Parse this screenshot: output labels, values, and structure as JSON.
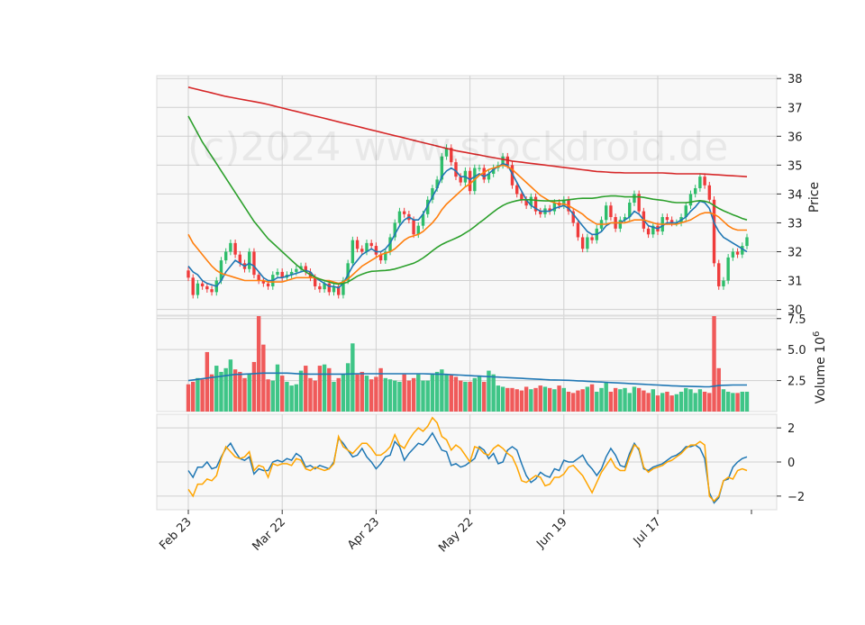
{
  "watermark": "(c)2024 www.stockdroid.de",
  "chart_data": [
    {
      "panel": "price",
      "type": "candlestick",
      "ylabel": "Price",
      "ylim": [
        29.8,
        38.1
      ],
      "y_ticks": [
        30,
        31,
        32,
        33,
        34,
        35,
        36,
        37,
        38
      ],
      "x_tick_labels": [
        "Feb 23",
        "Mar 22",
        "Apr 23",
        "May 22",
        "Jun 19",
        "Jul 17"
      ],
      "x_tick_index": [
        0,
        20,
        40,
        60,
        80,
        100
      ],
      "candles_close": [
        31.1,
        30.5,
        30.9,
        30.8,
        30.7,
        30.6,
        31.0,
        31.7,
        32.0,
        32.3,
        31.9,
        31.6,
        31.4,
        32.0,
        31.2,
        31.0,
        30.9,
        30.8,
        31.2,
        31.3,
        31.1,
        31.2,
        31.3,
        31.4,
        31.5,
        31.3,
        31.1,
        30.8,
        30.7,
        30.9,
        30.6,
        30.8,
        30.5,
        31.0,
        31.6,
        32.4,
        32.1,
        32.0,
        32.3,
        32.2,
        31.9,
        31.7,
        32.0,
        32.5,
        33.0,
        33.4,
        33.3,
        33.1,
        32.6,
        32.9,
        33.3,
        33.8,
        34.2,
        34.5,
        35.3,
        35.6,
        35.1,
        34.6,
        34.4,
        34.8,
        34.1,
        34.9,
        34.9,
        34.5,
        34.7,
        34.9,
        35.0,
        35.3,
        35.0,
        34.3,
        34.0,
        33.8,
        33.6,
        33.9,
        33.4,
        33.3,
        33.5,
        33.4,
        33.7,
        33.6,
        33.8,
        33.4,
        33.0,
        32.5,
        32.1,
        32.5,
        32.4,
        32.8,
        33.1,
        33.6,
        33.2,
        32.8,
        33.1,
        33.2,
        33.7,
        34.0,
        33.4,
        32.8,
        32.6,
        32.9,
        32.7,
        33.2,
        33.1,
        33.0,
        33.0,
        33.2,
        33.6,
        34.0,
        34.2,
        34.6,
        34.3,
        33.8,
        31.6,
        30.8,
        31.0,
        31.8,
        32.0,
        31.9,
        32.2,
        32.5
      ],
      "series": [
        {
          "name": "",
          "color": "#1f77b4",
          "values": [
            31.5,
            31.3,
            31.2,
            31.0,
            30.9,
            30.85,
            30.8,
            31.0,
            31.3,
            31.5,
            31.7,
            31.6,
            31.5,
            31.6,
            31.5,
            31.3,
            31.1,
            31.0,
            31.0,
            31.1,
            31.1,
            31.15,
            31.2,
            31.25,
            31.3,
            31.35,
            31.3,
            31.1,
            31.0,
            30.9,
            30.8,
            30.8,
            30.75,
            30.9,
            31.2,
            31.5,
            31.7,
            31.9,
            32.0,
            32.1,
            32.0,
            32.0,
            32.1,
            32.3,
            32.6,
            32.9,
            33.1,
            33.2,
            33.1,
            33.1,
            33.3,
            33.6,
            33.9,
            34.2,
            34.6,
            34.8,
            34.9,
            34.8,
            34.6,
            34.6,
            34.5,
            34.6,
            34.7,
            34.6,
            34.7,
            34.85,
            34.95,
            35.05,
            35.0,
            34.7,
            34.4,
            34.1,
            33.8,
            33.6,
            33.5,
            33.4,
            33.4,
            33.4,
            33.5,
            33.55,
            33.6,
            33.5,
            33.3,
            33.1,
            32.9,
            32.7,
            32.6,
            32.6,
            32.7,
            32.9,
            33.0,
            33.0,
            33.0,
            33.1,
            33.2,
            33.4,
            33.3,
            33.1,
            32.9,
            32.85,
            32.8,
            32.9,
            33.0,
            33.0,
            33.0,
            33.1,
            33.2,
            33.4,
            33.55,
            33.75,
            33.7,
            33.5,
            33.0,
            32.7,
            32.5,
            32.4,
            32.3,
            32.2,
            32.1,
            32.0
          ]
        },
        {
          "name": "",
          "color": "#ff7f0e",
          "values": [
            32.6,
            32.3,
            32.1,
            31.9,
            31.7,
            31.5,
            31.35,
            31.25,
            31.2,
            31.15,
            31.1,
            31.05,
            31.0,
            31.0,
            31.0,
            31.0,
            31.0,
            30.95,
            30.95,
            30.95,
            30.95,
            31.0,
            31.05,
            31.1,
            31.1,
            31.1,
            31.1,
            31.1,
            31.05,
            31.0,
            31.0,
            30.95,
            30.9,
            30.95,
            31.05,
            31.2,
            31.35,
            31.5,
            31.6,
            31.7,
            31.8,
            31.9,
            31.95,
            32.0,
            32.1,
            32.25,
            32.4,
            32.5,
            32.55,
            32.6,
            32.7,
            32.85,
            33.0,
            33.2,
            33.45,
            33.65,
            33.8,
            33.95,
            34.1,
            34.25,
            34.35,
            34.5,
            34.65,
            34.75,
            34.85,
            34.9,
            34.95,
            35.0,
            34.95,
            34.85,
            34.7,
            34.55,
            34.4,
            34.25,
            34.1,
            33.95,
            33.85,
            33.75,
            33.7,
            33.65,
            33.65,
            33.6,
            33.5,
            33.4,
            33.3,
            33.15,
            33.05,
            32.95,
            32.95,
            32.95,
            33.0,
            33.0,
            33.0,
            33.0,
            33.05,
            33.1,
            33.1,
            33.1,
            33.05,
            33.0,
            32.95,
            32.95,
            32.95,
            32.95,
            32.95,
            33.0,
            33.05,
            33.1,
            33.2,
            33.3,
            33.35,
            33.35,
            33.3,
            33.2,
            33.05,
            32.9,
            32.8,
            32.75,
            32.75,
            32.75
          ]
        },
        {
          "name": "",
          "color": "#2ca02c",
          "values": [
            36.7,
            36.4,
            36.1,
            35.8,
            35.55,
            35.3,
            35.05,
            34.8,
            34.55,
            34.3,
            34.05,
            33.8,
            33.55,
            33.3,
            33.05,
            32.85,
            32.65,
            32.45,
            32.3,
            32.15,
            32.0,
            31.85,
            31.7,
            31.55,
            31.42,
            31.3,
            31.2,
            31.12,
            31.05,
            31.0,
            30.95,
            30.9,
            30.88,
            30.9,
            30.95,
            31.05,
            31.15,
            31.22,
            31.28,
            31.32,
            31.33,
            31.34,
            31.35,
            31.37,
            31.4,
            31.45,
            31.5,
            31.55,
            31.6,
            31.68,
            31.78,
            31.9,
            32.03,
            32.15,
            32.25,
            32.33,
            32.4,
            32.47,
            32.55,
            32.65,
            32.75,
            32.87,
            33.0,
            33.12,
            33.25,
            33.38,
            33.5,
            33.6,
            33.68,
            33.73,
            33.77,
            33.8,
            33.8,
            33.8,
            33.78,
            33.77,
            33.76,
            33.76,
            33.76,
            33.77,
            33.78,
            33.8,
            33.82,
            33.84,
            33.85,
            33.85,
            33.85,
            33.87,
            33.9,
            33.92,
            33.93,
            33.93,
            33.92,
            33.9,
            33.9,
            33.9,
            33.9,
            33.88,
            33.85,
            33.82,
            33.8,
            33.78,
            33.75,
            33.72,
            33.7,
            33.7,
            33.7,
            33.72,
            33.75,
            33.77,
            33.75,
            33.7,
            33.6,
            33.5,
            33.42,
            33.35,
            33.28,
            33.22,
            33.15,
            33.1
          ]
        },
        {
          "name": "",
          "color": "#d62728",
          "values": [
            37.7,
            37.66,
            37.62,
            37.58,
            37.54,
            37.5,
            37.46,
            37.42,
            37.38,
            37.35,
            37.32,
            37.29,
            37.26,
            37.23,
            37.2,
            37.17,
            37.14,
            37.1,
            37.06,
            37.02,
            36.98,
            36.94,
            36.9,
            36.86,
            36.82,
            36.78,
            36.74,
            36.7,
            36.66,
            36.62,
            36.58,
            36.54,
            36.5,
            36.46,
            36.42,
            36.38,
            36.34,
            36.3,
            36.26,
            36.22,
            36.18,
            36.14,
            36.1,
            36.06,
            36.02,
            35.98,
            35.94,
            35.9,
            35.86,
            35.82,
            35.78,
            35.74,
            35.7,
            35.66,
            35.62,
            35.58,
            35.54,
            35.5,
            35.47,
            35.44,
            35.41,
            35.38,
            35.35,
            35.32,
            35.29,
            35.26,
            35.23,
            35.2,
            35.17,
            35.14,
            35.12,
            35.1,
            35.08,
            35.06,
            35.04,
            35.02,
            35.0,
            34.98,
            34.96,
            34.94,
            34.92,
            34.9,
            34.88,
            34.86,
            34.84,
            34.82,
            34.8,
            34.78,
            34.77,
            34.76,
            34.75,
            34.74,
            34.74,
            34.73,
            34.73,
            34.73,
            34.73,
            34.73,
            34.73,
            34.73,
            34.73,
            34.73,
            34.72,
            34.71,
            34.7,
            34.7,
            34.7,
            34.7,
            34.7,
            34.7,
            34.69,
            34.68,
            34.67,
            34.66,
            34.65,
            34.64,
            34.63,
            34.62,
            34.61,
            34.6
          ]
        }
      ]
    },
    {
      "panel": "volume",
      "type": "bar",
      "ylabel": "Volume  10",
      "ylabel_exponent": "6",
      "ylim": [
        0,
        7.7
      ],
      "y_ticks": [
        2.5,
        5.0,
        7.5
      ],
      "values": [
        2.2,
        2.4,
        2.7,
        2.6,
        4.8,
        3.0,
        3.7,
        3.2,
        3.5,
        4.2,
        3.4,
        3.2,
        2.7,
        3.0,
        4.0,
        7.7,
        5.4,
        2.6,
        2.5,
        3.8,
        2.9,
        2.4,
        2.1,
        2.2,
        3.3,
        3.7,
        2.7,
        2.5,
        3.7,
        3.8,
        3.5,
        2.4,
        2.7,
        3.0,
        3.9,
        5.5,
        3.0,
        3.2,
        2.9,
        2.6,
        2.8,
        3.5,
        2.7,
        2.6,
        2.5,
        2.4,
        3.0,
        2.5,
        2.7,
        3.0,
        2.5,
        2.5,
        3.0,
        3.2,
        3.4,
        3.0,
        3.0,
        2.8,
        2.5,
        2.4,
        2.4,
        2.7,
        2.9,
        2.4,
        3.3,
        3.0,
        2.1,
        2.0,
        1.9,
        1.9,
        1.8,
        1.7,
        2.0,
        1.8,
        1.9,
        2.1,
        2.0,
        1.9,
        1.8,
        2.1,
        1.9,
        1.6,
        1.5,
        1.7,
        1.8,
        2.0,
        2.2,
        1.6,
        1.9,
        2.4,
        1.6,
        1.9,
        1.8,
        1.9,
        1.5,
        2.0,
        1.9,
        1.7,
        1.5,
        1.8,
        1.3,
        1.5,
        1.6,
        1.3,
        1.4,
        1.6,
        1.9,
        1.8,
        1.5,
        1.8,
        1.6,
        1.5,
        7.7,
        3.5,
        1.8,
        1.6,
        1.5,
        1.5,
        1.6,
        1.6
      ],
      "moving_average": [
        2.5,
        2.55,
        2.6,
        2.65,
        2.7,
        2.75,
        2.8,
        2.85,
        2.9,
        2.95,
        3.0,
        3.0,
        3.02,
        3.04,
        3.06,
        3.08,
        3.1,
        3.1,
        3.1,
        3.1,
        3.1,
        3.1,
        3.08,
        3.06,
        3.04,
        3.03,
        3.02,
        3.02,
        3.02,
        3.02,
        3.02,
        3.02,
        3.02,
        3.02,
        3.03,
        3.04,
        3.05,
        3.05,
        3.05,
        3.05,
        3.05,
        3.05,
        3.05,
        3.05,
        3.05,
        3.05,
        3.05,
        3.05,
        3.05,
        3.05,
        3.05,
        3.04,
        3.03,
        3.02,
        3.01,
        3.0,
        2.98,
        2.96,
        2.94,
        2.92,
        2.9,
        2.88,
        2.86,
        2.84,
        2.82,
        2.8,
        2.78,
        2.76,
        2.74,
        2.72,
        2.7,
        2.68,
        2.66,
        2.64,
        2.62,
        2.6,
        2.58,
        2.56,
        2.55,
        2.54,
        2.53,
        2.52,
        2.5,
        2.48,
        2.46,
        2.44,
        2.42,
        2.4,
        2.38,
        2.36,
        2.34,
        2.32,
        2.3,
        2.28,
        2.26,
        2.24,
        2.22,
        2.2,
        2.18,
        2.16,
        2.14,
        2.12,
        2.1,
        2.08,
        2.06,
        2.05,
        2.04,
        2.03,
        2.02,
        2.01,
        2.0,
        2.0,
        2.05,
        2.1,
        2.12,
        2.13,
        2.14,
        2.14,
        2.14,
        2.14
      ]
    },
    {
      "panel": "oscillator",
      "type": "line",
      "ylim": [
        -2.8,
        2.8
      ],
      "y_ticks": [
        -2,
        0,
        2
      ],
      "series": [
        {
          "name": "",
          "color": "#1f77b4",
          "values": [
            -0.5,
            -0.9,
            -0.3,
            -0.3,
            0.0,
            -0.4,
            -0.3,
            0.3,
            0.8,
            1.1,
            0.6,
            0.2,
            0.1,
            0.3,
            -0.7,
            -0.4,
            -0.5,
            -0.5,
            0.0,
            0.1,
            0.0,
            0.2,
            0.1,
            0.5,
            0.3,
            -0.3,
            -0.2,
            -0.4,
            -0.2,
            -0.3,
            -0.4,
            0.0,
            1.4,
            1.1,
            0.7,
            0.3,
            0.4,
            0.8,
            0.3,
            0.0,
            -0.4,
            -0.1,
            0.3,
            0.4,
            1.2,
            0.9,
            0.1,
            0.5,
            0.8,
            1.1,
            1.0,
            1.3,
            1.7,
            1.2,
            0.7,
            0.6,
            -0.2,
            -0.1,
            -0.3,
            -0.2,
            0.0,
            0.2,
            0.9,
            0.7,
            0.2,
            0.5,
            -0.1,
            0.0,
            0.7,
            0.9,
            0.7,
            -0.1,
            -0.8,
            -1.2,
            -1.0,
            -0.6,
            -0.8,
            -0.9,
            -0.4,
            -0.5,
            0.1,
            0.0,
            0.0,
            0.2,
            0.4,
            -0.1,
            -0.4,
            -0.8,
            -0.4,
            0.3,
            0.8,
            0.4,
            -0.2,
            -0.3,
            0.5,
            1.1,
            0.7,
            -0.4,
            -0.5,
            -0.3,
            -0.2,
            -0.1,
            0.1,
            0.3,
            0.4,
            0.6,
            0.9,
            0.9,
            1.0,
            0.8,
            0.2,
            -1.8,
            -2.4,
            -2.1,
            -1.1,
            -1.0,
            -0.3,
            0.0,
            0.2,
            0.3
          ]
        },
        {
          "name": "",
          "color": "#ffa500",
          "values": [
            -1.6,
            -2.0,
            -1.3,
            -1.3,
            -1.0,
            -1.1,
            -0.8,
            0.2,
            0.9,
            0.6,
            0.3,
            0.2,
            0.3,
            0.6,
            -0.5,
            -0.2,
            -0.3,
            -0.9,
            -0.1,
            -0.2,
            -0.1,
            -0.1,
            -0.2,
            0.2,
            0.1,
            -0.4,
            -0.5,
            -0.3,
            -0.4,
            -0.5,
            -0.4,
            -0.1,
            1.5,
            0.9,
            0.7,
            0.5,
            0.8,
            1.1,
            1.1,
            0.8,
            0.4,
            0.4,
            0.6,
            0.9,
            1.6,
            1.0,
            0.8,
            1.3,
            1.7,
            2.0,
            1.8,
            2.1,
            2.6,
            2.3,
            1.5,
            1.3,
            0.7,
            1.0,
            0.8,
            0.4,
            0.0,
            0.9,
            0.8,
            0.5,
            0.4,
            0.8,
            1.0,
            0.8,
            0.5,
            0.3,
            -0.3,
            -1.1,
            -1.2,
            -1.0,
            -0.8,
            -0.9,
            -1.4,
            -1.3,
            -0.9,
            -0.9,
            -0.7,
            -0.3,
            -0.2,
            -0.5,
            -0.8,
            -1.3,
            -1.8,
            -1.2,
            -0.6,
            -0.2,
            0.2,
            -0.3,
            -0.5,
            -0.5,
            0.3,
            1.0,
            0.8,
            -0.3,
            -0.6,
            -0.4,
            -0.3,
            -0.2,
            0.0,
            0.1,
            0.3,
            0.5,
            0.8,
            1.0,
            1.0,
            1.2,
            1.0,
            -2.0,
            -2.3,
            -2.0,
            -1.1,
            -0.9,
            -1.0,
            -0.5,
            -0.4,
            -0.5
          ]
        }
      ]
    }
  ]
}
